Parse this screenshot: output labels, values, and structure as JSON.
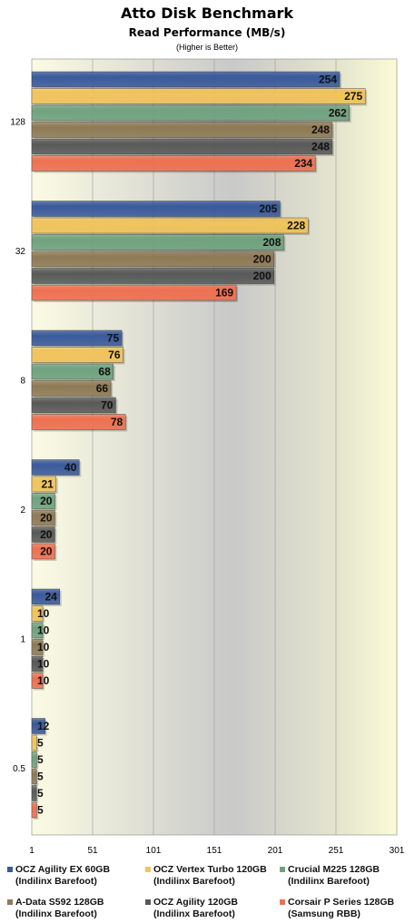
{
  "chart_data": {
    "type": "bar",
    "orientation": "horizontal",
    "title": "Atto Disk Benchmark",
    "subtitle": "Read Performance (MB/s)",
    "note": "(Higher is Better)",
    "categories": [
      "128",
      "32",
      "8",
      "2",
      "1",
      "0.5"
    ],
    "series": [
      {
        "name": "OCZ Agility EX 60GB",
        "sub": "(Indilinx Barefoot)",
        "color": "#3a5a9c",
        "values": [
          254,
          205,
          75,
          40,
          24,
          12
        ]
      },
      {
        "name": "OCZ Vertex Turbo 120GB",
        "sub": "(Indilinx Barefoot)",
        "color": "#f2c45a",
        "values": [
          275,
          228,
          76,
          21,
          10,
          5
        ]
      },
      {
        "name": "Crucial M225 128GB",
        "sub": "(Indilinx Barefoot)",
        "color": "#6fa37f",
        "values": [
          262,
          208,
          68,
          20,
          10,
          5
        ]
      },
      {
        "name": "A-Data S592 128GB",
        "sub": "(Indilinx Barefoot)",
        "color": "#8f7a55",
        "values": [
          248,
          200,
          66,
          20,
          10,
          5
        ]
      },
      {
        "name": "OCZ Agility 120GB",
        "sub": "(Indilinx Barefoot)",
        "color": "#595959",
        "values": [
          248,
          200,
          70,
          20,
          10,
          5
        ]
      },
      {
        "name": "Corsair P Series 128GB",
        "sub": "(Samsung RBB)",
        "color": "#f07050",
        "values": [
          234,
          169,
          78,
          20,
          10,
          5
        ]
      }
    ],
    "xticks": [
      "1",
      "51",
      "101",
      "151",
      "201",
      "251",
      "301"
    ],
    "xlim": [
      1,
      301
    ],
    "grid": true,
    "legend_position": "bottom"
  }
}
